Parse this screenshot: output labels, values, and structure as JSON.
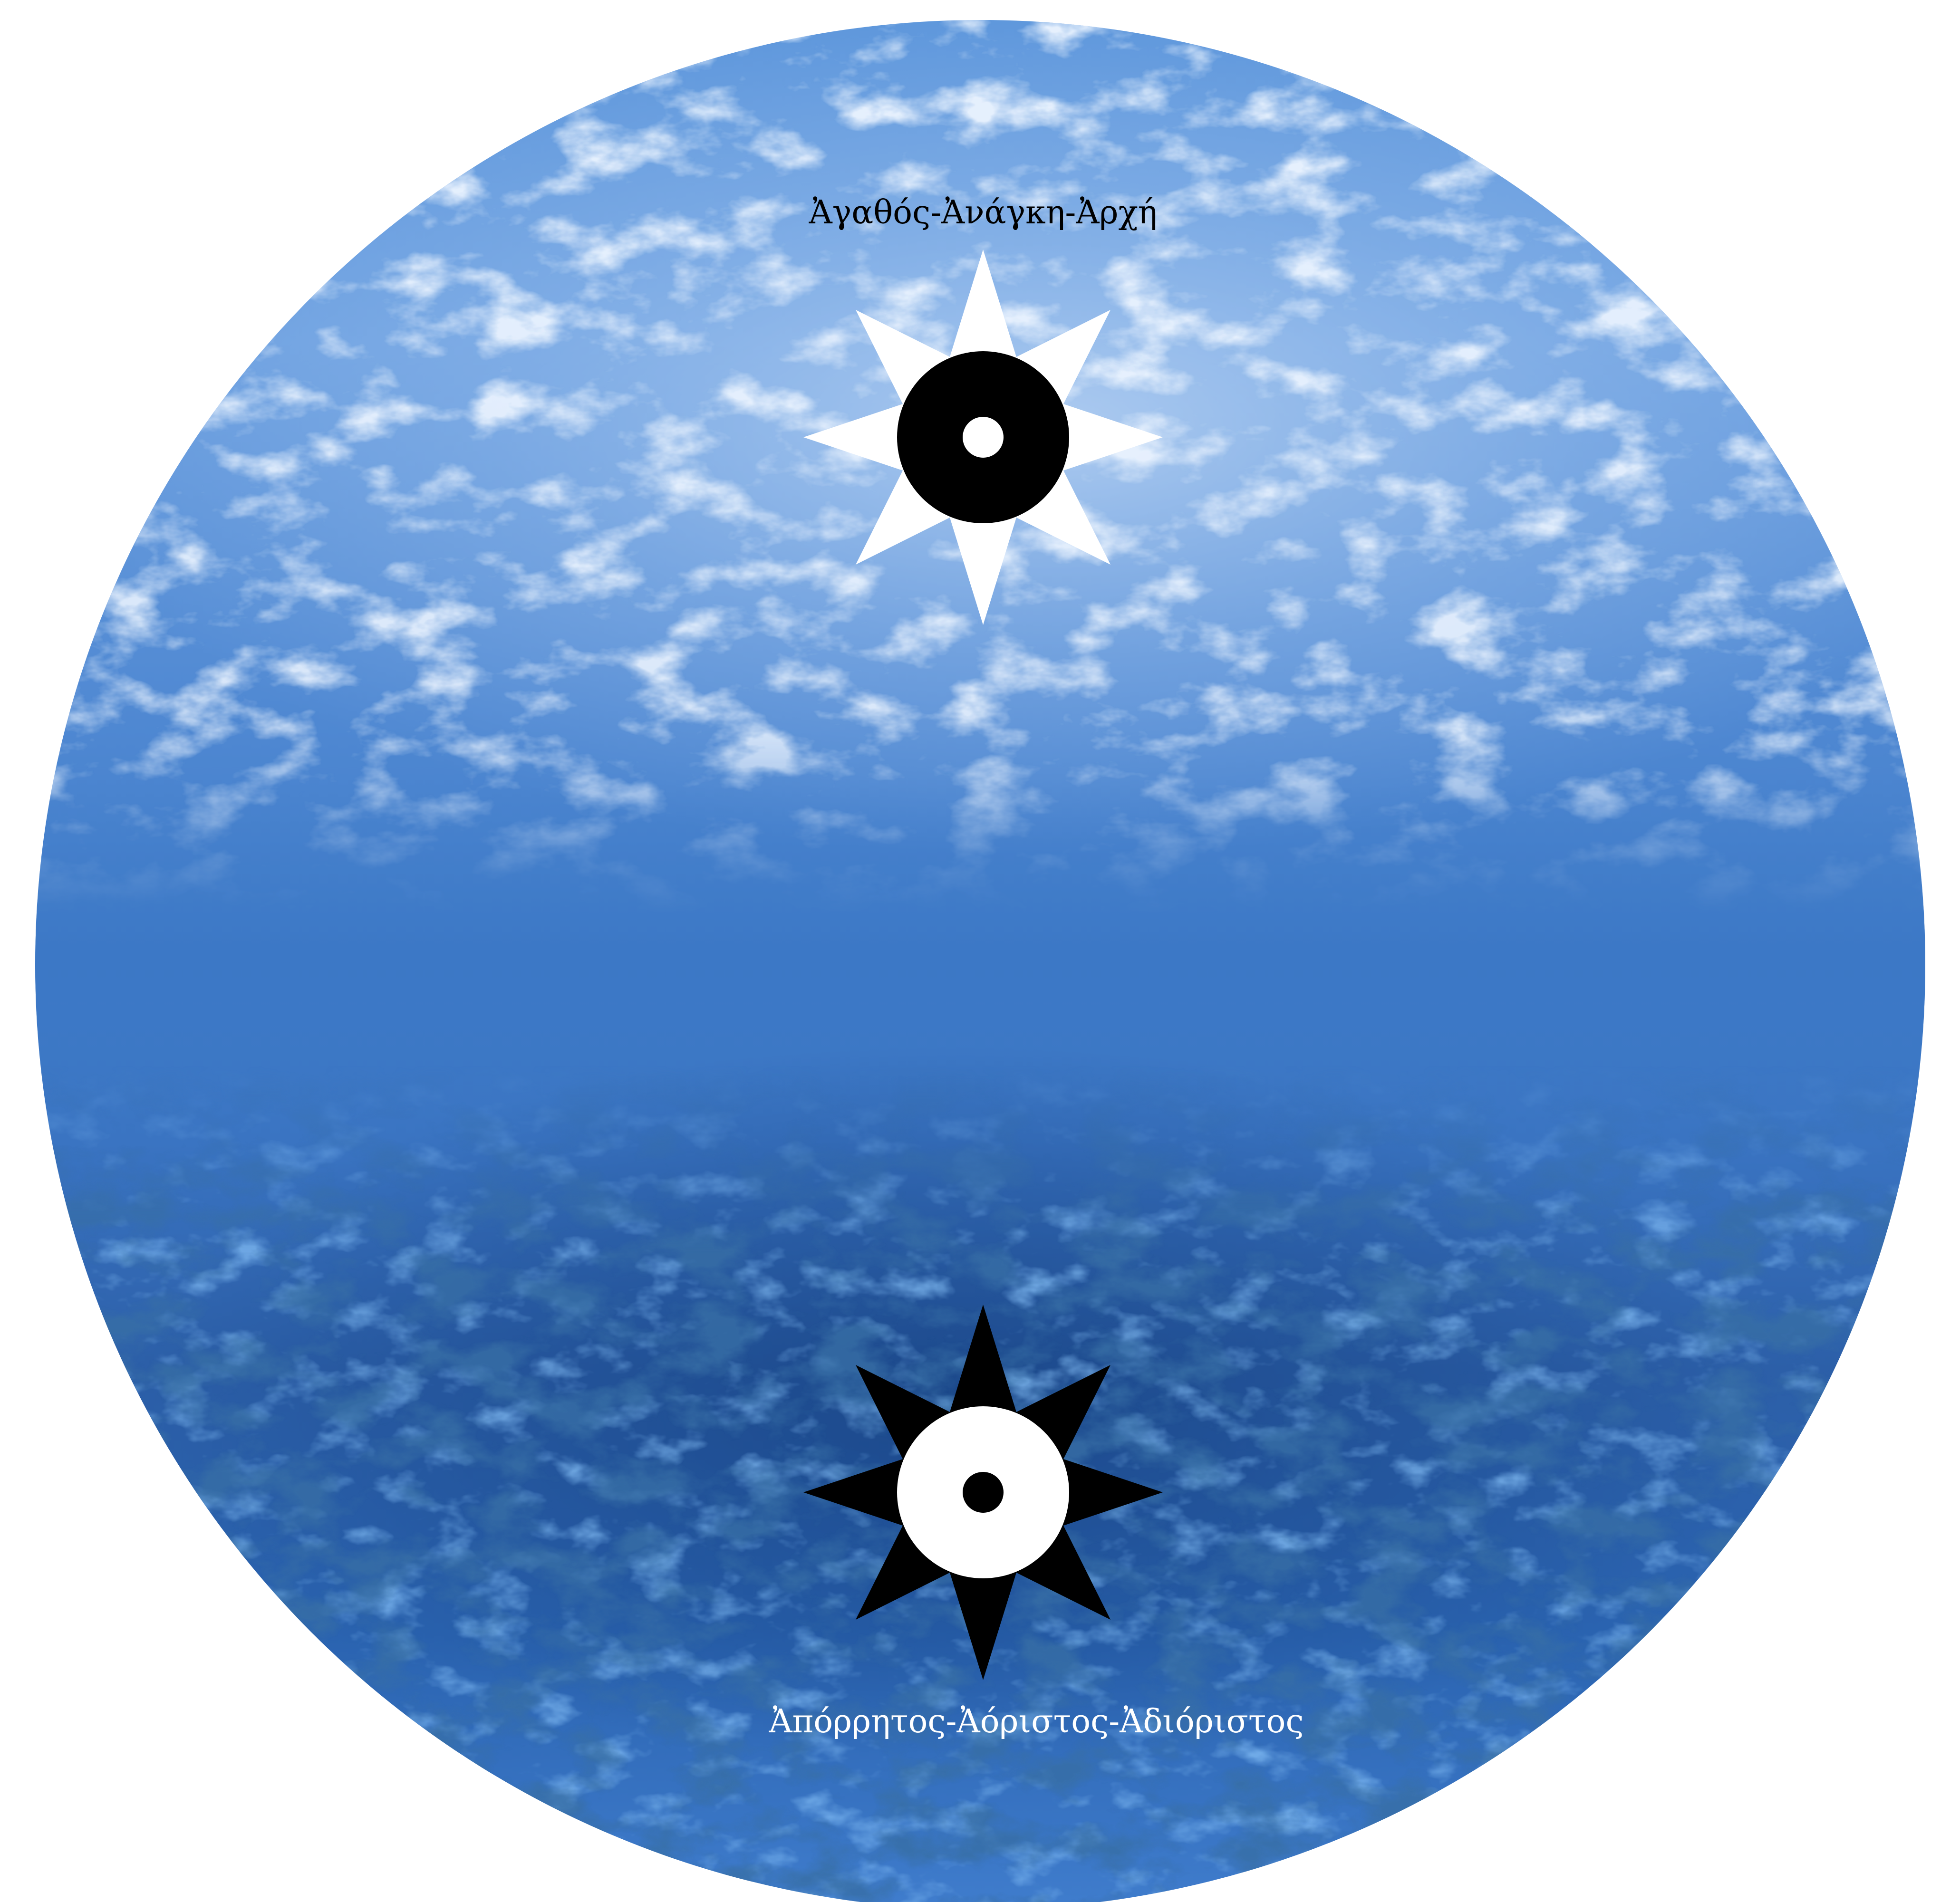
{
  "top_inscription": "Ἀγαθός-Ἀνάγκη-Ἀρχή",
  "bottom_inscription": "Ἀπόρρητος-Ἀόριστος-Ἀδιόριστος",
  "colors": {
    "background": "#ffffff",
    "disc_blue": "#3f7ccc",
    "disc_light": "#8fb9ec",
    "disc_dark": "#1d4d92",
    "top_star": "#ffffff",
    "top_ring": "#000000",
    "bottom_star": "#000000",
    "bottom_ring": "#ffffff",
    "top_text": "#000000",
    "bottom_text": "#ffffff"
  },
  "symbols": {
    "top": "white-eight-point-star-with-black-ring",
    "bottom": "black-eight-point-star-with-white-ring"
  }
}
